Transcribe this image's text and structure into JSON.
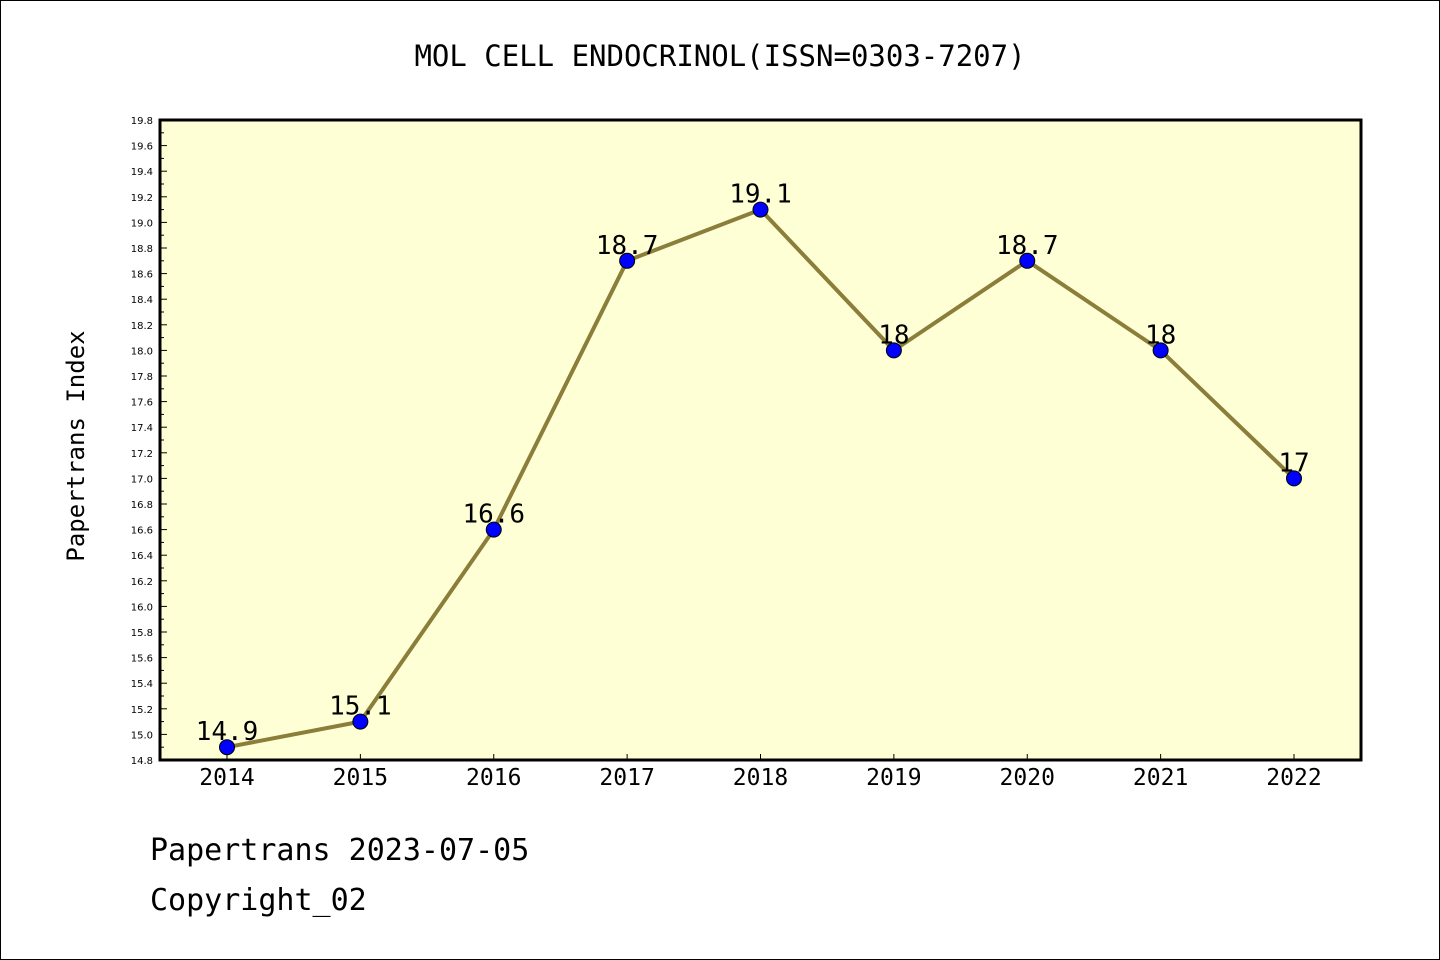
{
  "chart_data": {
    "type": "line",
    "title": "MOL CELL ENDOCRINOL(ISSN=0303-7207)",
    "xlabel": "",
    "ylabel": "Papertrans Index",
    "categories": [
      "2014",
      "2015",
      "2016",
      "2017",
      "2018",
      "2019",
      "2020",
      "2021",
      "2022"
    ],
    "series": [
      {
        "values": [
          14.9,
          15.1,
          16.6,
          18.7,
          19.1,
          18.0,
          18.7,
          18.0,
          17.0
        ],
        "labels": [
          "14.9",
          "15.1",
          "16.6",
          "18.7",
          "19.1",
          "18",
          "18.7",
          "18",
          "17"
        ]
      }
    ],
    "ylim": [
      14.8,
      19.8
    ],
    "ytick_step": 0.2,
    "grid": false,
    "legend": "none",
    "colors": {
      "plot_background": "#ffffd5",
      "line": "#8b7d3a",
      "marker": "#0000ff"
    }
  },
  "footer": {
    "line1": "Papertrans 2023-07-05",
    "line2": "Copyright_02"
  }
}
